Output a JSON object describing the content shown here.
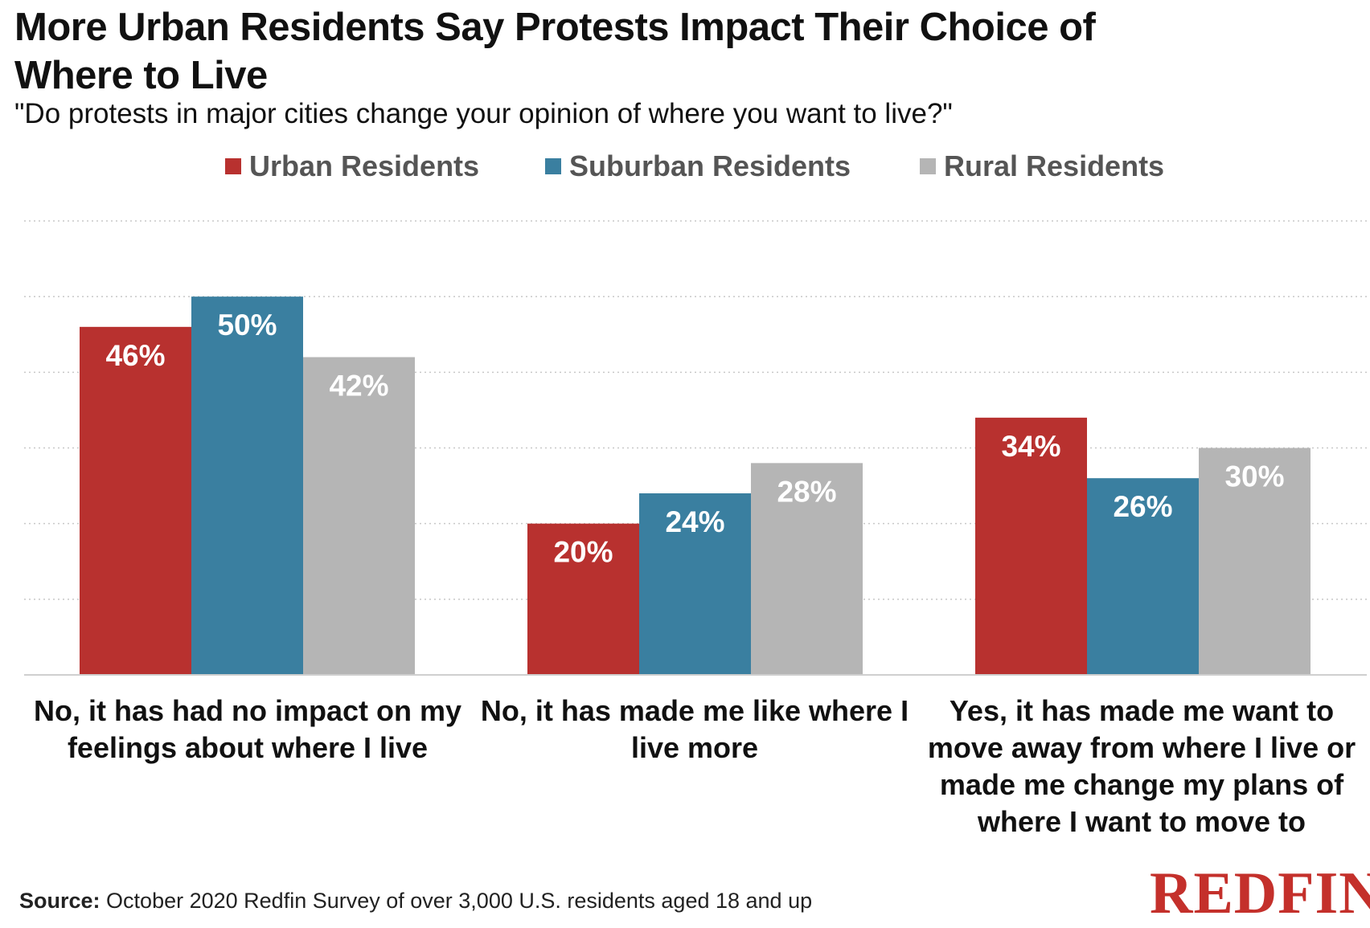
{
  "title": "More Urban Residents Say Protests Impact Their Choice of Where to Live",
  "subtitle": "\"Do protests in major cities change your opinion of where you want to live?\"",
  "source_label": "Source:",
  "source_text": "October 2020 Redfin Survey of over 3,000 U.S. residents aged 18 and up",
  "logo": "REDFIN",
  "colors": {
    "urban": "#b8312f",
    "suburban": "#3a7fa0",
    "rural": "#b5b5b5"
  },
  "chart_data": {
    "type": "bar",
    "title": "More Urban Residents Say Protests Impact Their Choice of Where to Live",
    "subtitle": "\"Do protests in major cities change your opinion of where you want to live?\"",
    "categories": [
      "No, it has had no impact on my feelings about where I live",
      "No, it has made me like where I live more",
      "Yes, it has made me want to move away from where I live or made me change my plans of where I want to move to"
    ],
    "series": [
      {
        "name": "Urban Residents",
        "values": [
          46,
          20,
          34
        ],
        "labels": [
          "46%",
          "20%",
          "34%"
        ]
      },
      {
        "name": "Suburban Residents",
        "values": [
          50,
          24,
          26
        ],
        "labels": [
          "50%",
          "24%",
          "26%"
        ]
      },
      {
        "name": "Rural Residents",
        "values": [
          42,
          28,
          30
        ],
        "labels": [
          "42%",
          "28%",
          "30%"
        ]
      }
    ],
    "ylim": [
      0,
      60
    ],
    "grid": true,
    "legend_position": "top"
  }
}
